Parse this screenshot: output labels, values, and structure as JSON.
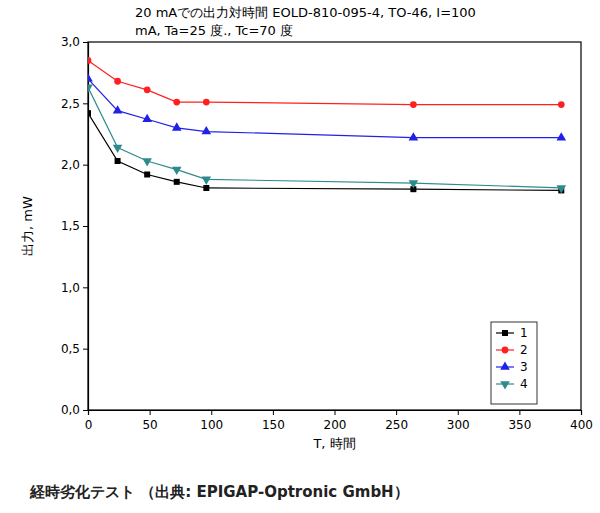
{
  "chart_data": {
    "type": "line",
    "title": "20 mAでの出力対時間  EOLD-810-095-4, TO-46, I=100",
    "subtitle": "mA, Ta=25 度., Tc=70 度",
    "x_label": "T, 時間",
    "y_label": "出力, mW",
    "caption": "経時劣化テスト （出典: EPIGAP-Optronic GmbH）",
    "x": [
      0,
      24,
      48,
      72,
      96,
      264,
      384
    ],
    "series": [
      {
        "name": "1",
        "color": "#000000",
        "marker": "square",
        "values": [
          2.42,
          2.03,
          1.92,
          1.86,
          1.81,
          1.8,
          1.79
        ]
      },
      {
        "name": "2",
        "color": "#ff2020",
        "marker": "circle",
        "values": [
          2.85,
          2.68,
          2.61,
          2.51,
          2.51,
          2.49,
          2.49
        ]
      },
      {
        "name": "3",
        "color": "#2020e8",
        "marker": "triangle-up",
        "values": [
          2.7,
          2.44,
          2.37,
          2.3,
          2.27,
          2.22,
          2.22
        ]
      },
      {
        "name": "4",
        "color": "#2e8b8b",
        "marker": "triangle-down",
        "values": [
          2.63,
          2.14,
          2.03,
          1.96,
          1.88,
          1.85,
          1.81
        ]
      }
    ],
    "xlim": [
      0,
      400
    ],
    "xticks": [
      0,
      50,
      100,
      150,
      200,
      250,
      300,
      350,
      400
    ],
    "ylim": [
      0,
      3
    ],
    "yticks": [
      {
        "value": 0,
        "label": "0,0"
      },
      {
        "value": 0.5,
        "label": "0,5"
      },
      {
        "value": 1,
        "label": "1,0"
      },
      {
        "value": 1.5,
        "label": "1,5"
      },
      {
        "value": 2,
        "label": "2,0"
      },
      {
        "value": 2.5,
        "label": "2,5"
      },
      {
        "value": 3,
        "label": "3,0"
      }
    ],
    "grid": false,
    "legend": "lower right"
  }
}
